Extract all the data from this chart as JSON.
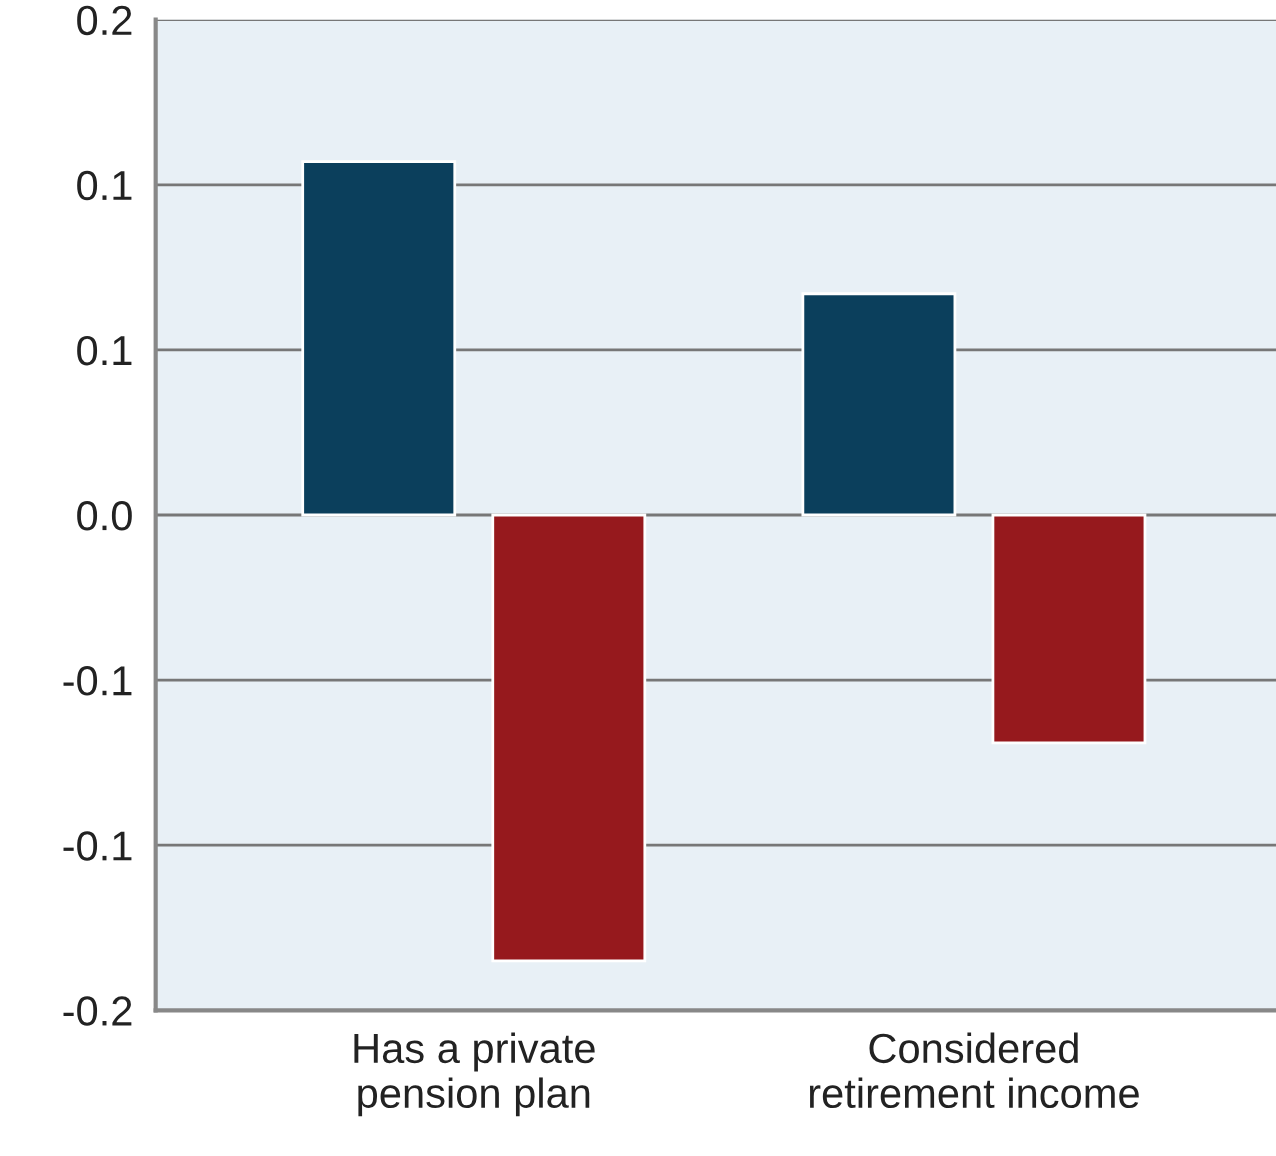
{
  "chart_data": {
    "type": "bar",
    "categories": [
      "Has a private\npension plan",
      "Considered\nretirement income"
    ],
    "series": [
      {
        "color": "#0b3f5c",
        "values": [
          0.107,
          0.067
        ]
      },
      {
        "color": "#96191d",
        "values": [
          -0.135,
          -0.069
        ]
      }
    ],
    "ylim": [
      -0.15,
      0.15
    ],
    "yticks": [
      {
        "value": -0.15,
        "label": "-0.2"
      },
      {
        "value": -0.1,
        "label": "-0.1"
      },
      {
        "value": -0.05,
        "label": "-0.1"
      },
      {
        "value": 0,
        "label": "0.0"
      },
      {
        "value": 0.05,
        "label": "0.1"
      },
      {
        "value": 0.1,
        "label": "0.1"
      },
      {
        "value": 0.15,
        "label": "0.2"
      }
    ],
    "grid": "y"
  }
}
